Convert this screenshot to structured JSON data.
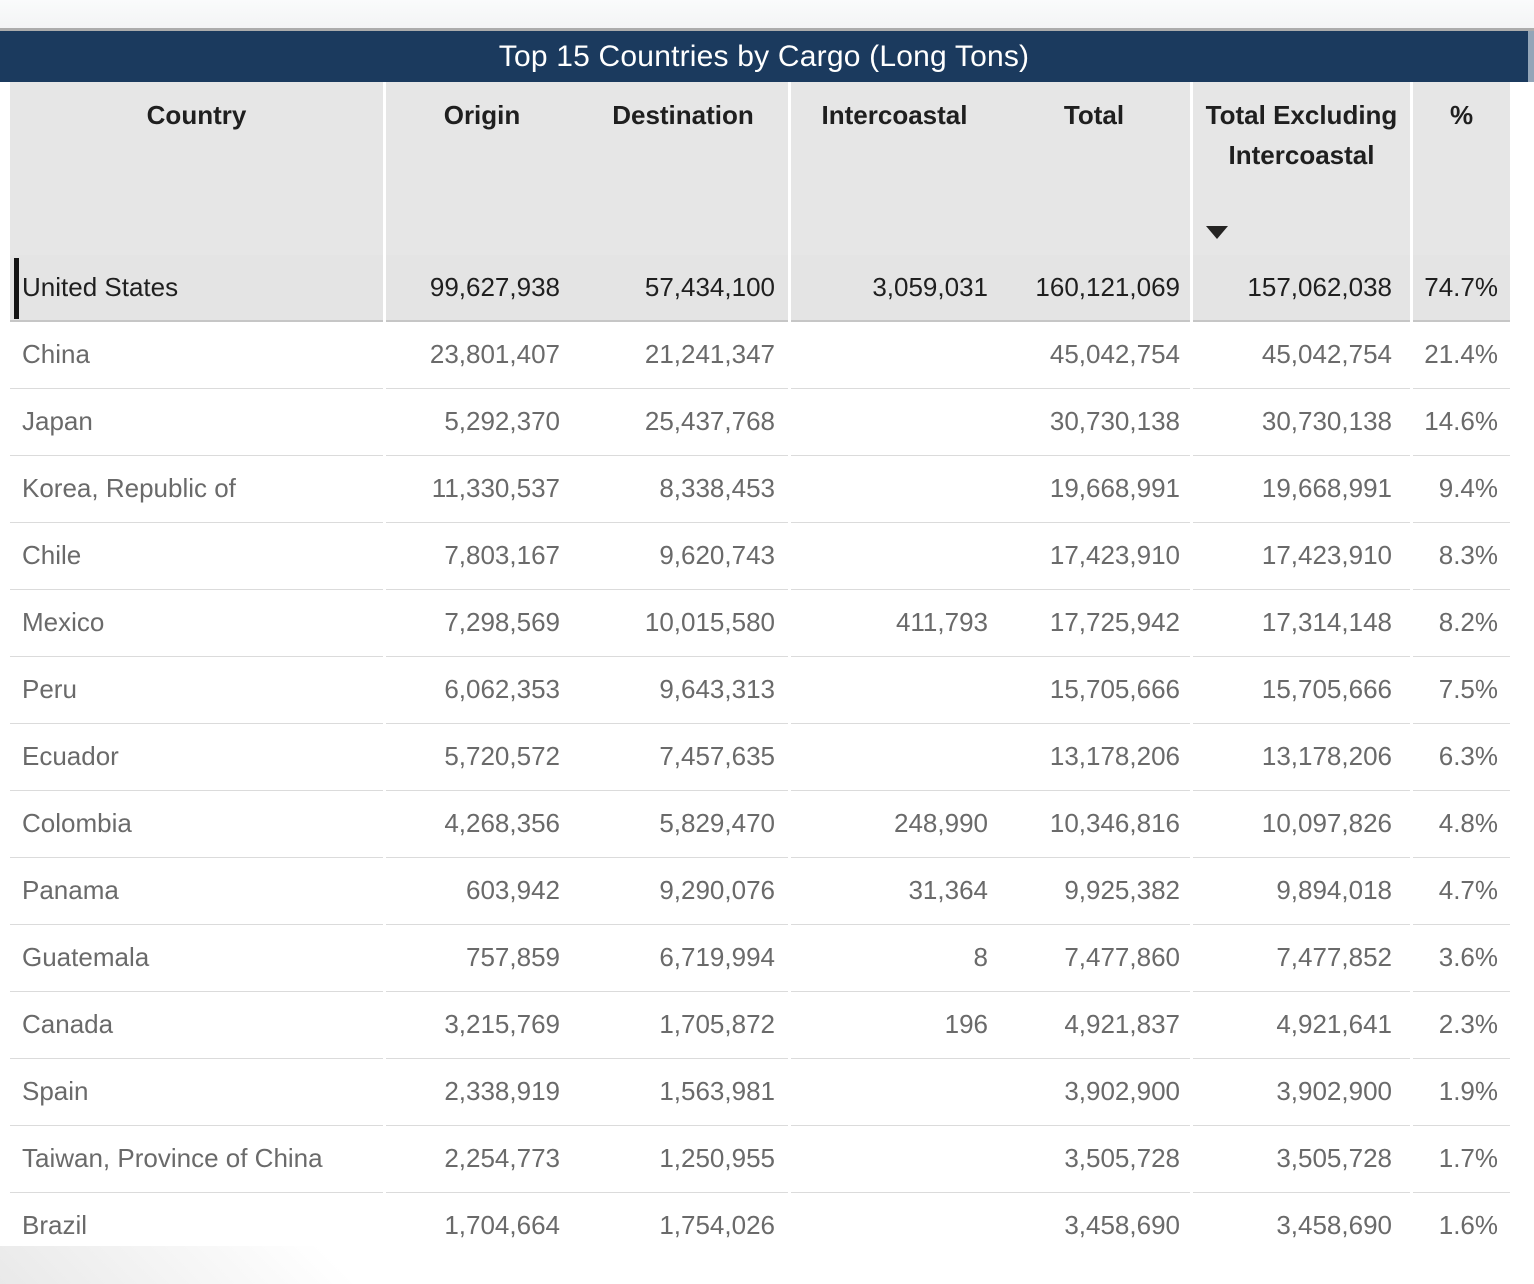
{
  "visual": {
    "title": "Top 15 Countries by Cargo (Long Tons)"
  },
  "table": {
    "columns": [
      {
        "label": "Country"
      },
      {
        "label": "Origin"
      },
      {
        "label": "Destination"
      },
      {
        "label": "Intercoastal"
      },
      {
        "label": "Total"
      },
      {
        "label": "Total Excluding Intercoastal"
      },
      {
        "label": "%"
      }
    ],
    "sort": {
      "column": "Total Excluding Intercoastal",
      "direction": "descending",
      "icon": "filled-down-triangle"
    },
    "rows": [
      {
        "country": "United States",
        "origin": "99,627,938",
        "destination": "57,434,100",
        "intercoastal": "3,059,031",
        "total": "160,121,069",
        "total_excluding_intercoastal": "157,062,038",
        "percent": "74.7%",
        "selected": true
      },
      {
        "country": "China",
        "origin": "23,801,407",
        "destination": "21,241,347",
        "intercoastal": "",
        "total": "45,042,754",
        "total_excluding_intercoastal": "45,042,754",
        "percent": "21.4%",
        "selected": false
      },
      {
        "country": "Japan",
        "origin": "5,292,370",
        "destination": "25,437,768",
        "intercoastal": "",
        "total": "30,730,138",
        "total_excluding_intercoastal": "30,730,138",
        "percent": "14.6%",
        "selected": false
      },
      {
        "country": "Korea, Republic of",
        "origin": "11,330,537",
        "destination": "8,338,453",
        "intercoastal": "",
        "total": "19,668,991",
        "total_excluding_intercoastal": "19,668,991",
        "percent": "9.4%",
        "selected": false
      },
      {
        "country": "Chile",
        "origin": "7,803,167",
        "destination": "9,620,743",
        "intercoastal": "",
        "total": "17,423,910",
        "total_excluding_intercoastal": "17,423,910",
        "percent": "8.3%",
        "selected": false
      },
      {
        "country": "Mexico",
        "origin": "7,298,569",
        "destination": "10,015,580",
        "intercoastal": "411,793",
        "total": "17,725,942",
        "total_excluding_intercoastal": "17,314,148",
        "percent": "8.2%",
        "selected": false
      },
      {
        "country": "Peru",
        "origin": "6,062,353",
        "destination": "9,643,313",
        "intercoastal": "",
        "total": "15,705,666",
        "total_excluding_intercoastal": "15,705,666",
        "percent": "7.5%",
        "selected": false
      },
      {
        "country": "Ecuador",
        "origin": "5,720,572",
        "destination": "7,457,635",
        "intercoastal": "",
        "total": "13,178,206",
        "total_excluding_intercoastal": "13,178,206",
        "percent": "6.3%",
        "selected": false
      },
      {
        "country": "Colombia",
        "origin": "4,268,356",
        "destination": "5,829,470",
        "intercoastal": "248,990",
        "total": "10,346,816",
        "total_excluding_intercoastal": "10,097,826",
        "percent": "4.8%",
        "selected": false
      },
      {
        "country": "Panama",
        "origin": "603,942",
        "destination": "9,290,076",
        "intercoastal": "31,364",
        "total": "9,925,382",
        "total_excluding_intercoastal": "9,894,018",
        "percent": "4.7%",
        "selected": false
      },
      {
        "country": "Guatemala",
        "origin": "757,859",
        "destination": "6,719,994",
        "intercoastal": "8",
        "total": "7,477,860",
        "total_excluding_intercoastal": "7,477,852",
        "percent": "3.6%",
        "selected": false
      },
      {
        "country": "Canada",
        "origin": "3,215,769",
        "destination": "1,705,872",
        "intercoastal": "196",
        "total": "4,921,837",
        "total_excluding_intercoastal": "4,921,641",
        "percent": "2.3%",
        "selected": false
      },
      {
        "country": "Spain",
        "origin": "2,338,919",
        "destination": "1,563,981",
        "intercoastal": "",
        "total": "3,902,900",
        "total_excluding_intercoastal": "3,902,900",
        "percent": "1.9%",
        "selected": false
      },
      {
        "country": "Taiwan, Province of China",
        "origin": "2,254,773",
        "destination": "1,250,955",
        "intercoastal": "",
        "total": "3,505,728",
        "total_excluding_intercoastal": "3,505,728",
        "percent": "1.7%",
        "selected": false
      },
      {
        "country": "Brazil",
        "origin": "1,704,664",
        "destination": "1,754,026",
        "intercoastal": "",
        "total": "3,458,690",
        "total_excluding_intercoastal": "3,458,690",
        "percent": "1.6%",
        "selected": false
      }
    ]
  },
  "colors": {
    "title_bar_bg": "#1B3A5E",
    "title_text": "#FFFFFF",
    "header_bg": "#E6E6E6",
    "header_text": "#1F1F1F",
    "row_text": "#6A6A6A",
    "selected_row_bg": "#E4E4E4",
    "selected_row_text": "#1F1F1F",
    "selection_bar": "#141414",
    "row_divider": "#DBDBDB"
  }
}
